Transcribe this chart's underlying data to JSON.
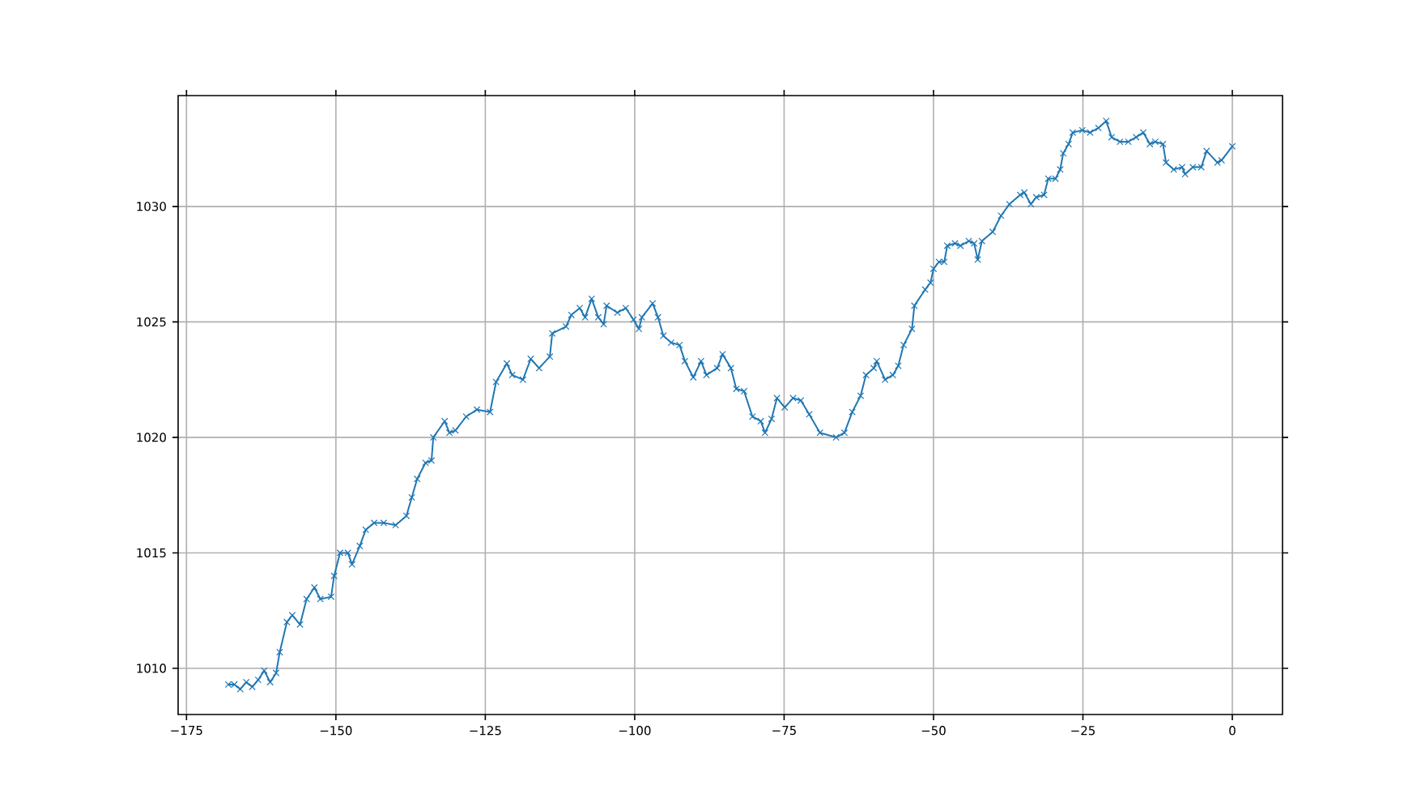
{
  "chart_data": {
    "type": "line",
    "x": [
      -168,
      -167,
      -166,
      -165,
      -164,
      -163,
      -162,
      -161,
      -160,
      -159.4,
      -158.2,
      -157.3,
      -156,
      -154.9,
      -153.6,
      -152.6,
      -150.8,
      -150.3,
      -149.3,
      -148,
      -147.3,
      -146,
      -145,
      -143.6,
      -142,
      -140,
      -138.2,
      -137.3,
      -136.4,
      -135,
      -134,
      -133.7,
      -131.8,
      -131,
      -130,
      -128.2,
      -126.4,
      -124.2,
      -123.2,
      -121.4,
      -120.5,
      -118.7,
      -117.4,
      -116,
      -114.2,
      -113.8,
      -111.5,
      -110.6,
      -109.2,
      -108.3,
      -107.2,
      -106.1,
      -105.2,
      -104.7,
      -102.9,
      -101.5,
      -100.2,
      -99.3,
      -98.8,
      -97,
      -96.1,
      -95.2,
      -93.9,
      -92.5,
      -91.6,
      -90.2,
      -88.9,
      -88,
      -86.2,
      -85.3,
      -83.9,
      -83,
      -81.7,
      -80.3,
      -78.9,
      -78.2,
      -77.1,
      -76.2,
      -74.9,
      -73.5,
      -72.2,
      -70.8,
      -69,
      -66.3,
      -64.9,
      -63.6,
      -62.2,
      -61.3,
      -60,
      -59.5,
      -58.1,
      -56.8,
      -55.9,
      -55,
      -53.6,
      -53.2,
      -51.4,
      -50.5,
      -50,
      -49.1,
      -48.2,
      -47.7,
      -46.4,
      -45.5,
      -44.1,
      -43.2,
      -42.6,
      -41.9,
      -40.1,
      -38.7,
      -37.3,
      -35.5,
      -34.8,
      -33.7,
      -32.8,
      -31.5,
      -30.8,
      -29.6,
      -28.8,
      -28.3,
      -27.4,
      -26.7,
      -25.1,
      -23.8,
      -22.4,
      -21.1,
      -20.2,
      -18.8,
      -17.4,
      -16.1,
      -14.9,
      -13.8,
      -12.9,
      -11.6,
      -11.1,
      -9.8,
      -8.4,
      -7.9,
      -6.6,
      -5.2,
      -4.3,
      -2.5,
      -1.8,
      0
    ],
    "values": [
      1009.3,
      1009.3,
      1009.1,
      1009.4,
      1009.2,
      1009.5,
      1009.9,
      1009.4,
      1009.8,
      1010.7,
      1012,
      1012.3,
      1011.9,
      1013,
      1013.5,
      1013,
      1013.1,
      1014,
      1015,
      1015,
      1014.5,
      1015.3,
      1016,
      1016.3,
      1016.3,
      1016.2,
      1016.6,
      1017.4,
      1018.2,
      1018.9,
      1019,
      1020,
      1020.7,
      1020.2,
      1020.3,
      1020.9,
      1021.2,
      1021.1,
      1022.4,
      1023.2,
      1022.7,
      1022.5,
      1023.4,
      1023,
      1023.5,
      1024.5,
      1024.8,
      1025.3,
      1025.6,
      1025.2,
      1026,
      1025.2,
      1024.9,
      1025.7,
      1025.4,
      1025.6,
      1025.1,
      1024.7,
      1025.2,
      1025.8,
      1025.2,
      1024.4,
      1024.1,
      1024,
      1023.3,
      1022.6,
      1023.3,
      1022.7,
      1023,
      1023.6,
      1023,
      1022.1,
      1022,
      1020.9,
      1020.7,
      1020.2,
      1020.8,
      1021.7,
      1021.3,
      1021.7,
      1021.6,
      1021,
      1020.2,
      1020,
      1020.2,
      1021.1,
      1021.8,
      1022.7,
      1023,
      1023.3,
      1022.5,
      1022.7,
      1023.1,
      1024,
      1024.7,
      1025.7,
      1026.4,
      1026.7,
      1027.3,
      1027.6,
      1027.6,
      1028.3,
      1028.4,
      1028.3,
      1028.5,
      1028.4,
      1027.7,
      1028.5,
      1028.9,
      1029.6,
      1030.1,
      1030.5,
      1030.6,
      1030.1,
      1030.4,
      1030.5,
      1031.2,
      1031.2,
      1031.6,
      1032.3,
      1032.7,
      1033.2,
      1033.3,
      1033.2,
      1033.4,
      1033.7,
      1033,
      1032.8,
      1032.8,
      1033,
      1033.2,
      1032.7,
      1032.8,
      1032.7,
      1031.9,
      1031.6,
      1031.7,
      1031.4,
      1031.7,
      1031.7,
      1032.4,
      1031.9,
      1032,
      1032.6
    ],
    "color": "#1f77b4",
    "marker": "cross",
    "grid": true,
    "xlim": [
      -176.4,
      8.4
    ],
    "ylim": [
      1008,
      1034.8
    ],
    "xticks": [
      {
        "value": -175,
        "label": "−175"
      },
      {
        "value": -150,
        "label": "−150"
      },
      {
        "value": -125,
        "label": "−125"
      },
      {
        "value": -100,
        "label": "−100"
      },
      {
        "value": -75,
        "label": "−75"
      },
      {
        "value": -50,
        "label": "−50"
      },
      {
        "value": -25,
        "label": "−25"
      },
      {
        "value": 0,
        "label": "0"
      }
    ],
    "yticks": [
      1010,
      1015,
      1020,
      1025,
      1030
    ]
  }
}
